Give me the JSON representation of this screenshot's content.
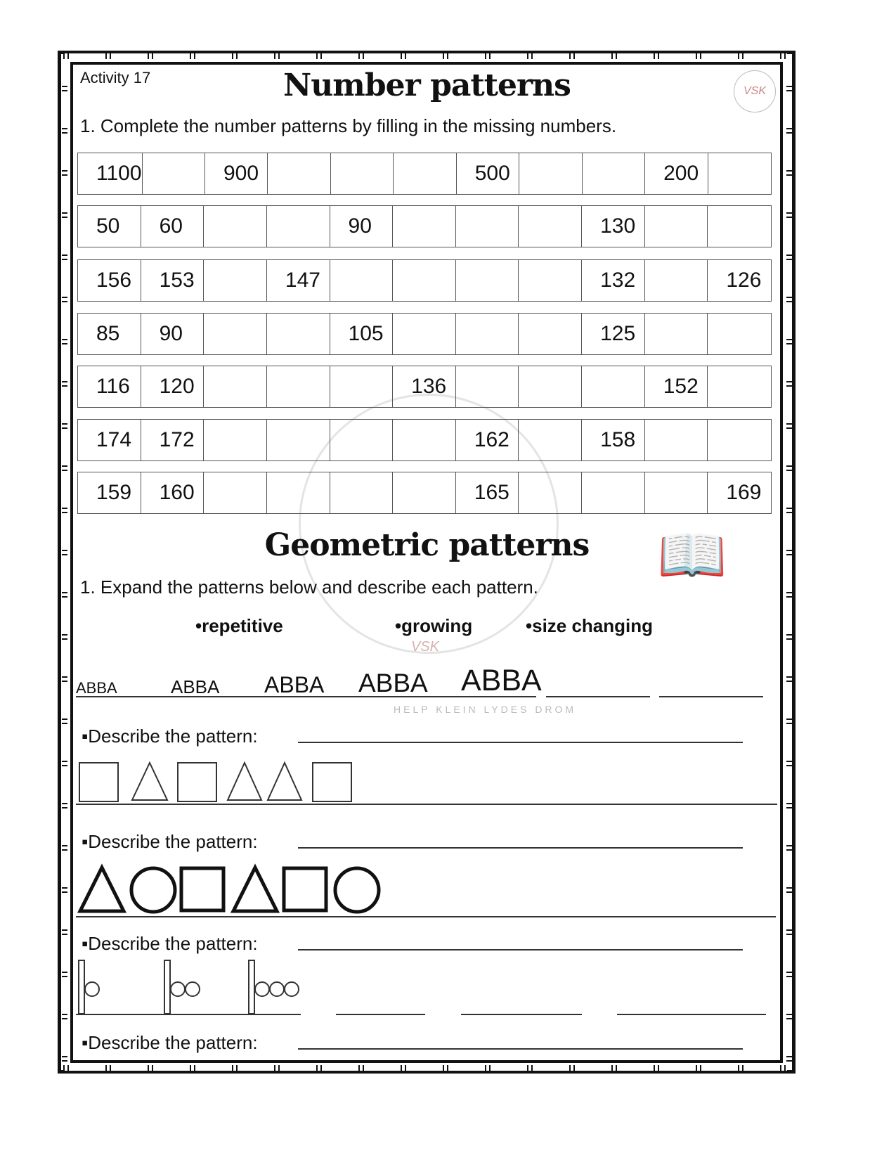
{
  "header": {
    "activity": "Activity 17",
    "title": "Number patterns",
    "logo_text": "VSK"
  },
  "number_section": {
    "instruction": "1. Complete the number patterns by filling in the missing numbers.",
    "rows": [
      [
        "1100",
        "",
        "900",
        "",
        "",
        "",
        "500",
        "",
        "",
        "200",
        ""
      ],
      [
        "50",
        "60",
        "",
        "",
        "90",
        "",
        "",
        "",
        "130",
        "",
        ""
      ],
      [
        "156",
        "153",
        "",
        "147",
        "",
        "",
        "",
        "",
        "132",
        "",
        "126"
      ],
      [
        "85",
        "90",
        "",
        "",
        "105",
        "",
        "",
        "",
        "125",
        "",
        ""
      ],
      [
        "116",
        "120",
        "",
        "",
        "",
        "136",
        "",
        "",
        "",
        "152",
        ""
      ],
      [
        "174",
        "172",
        "",
        "",
        "",
        "",
        "162",
        "",
        "158",
        "",
        ""
      ],
      [
        "159",
        "160",
        "",
        "",
        "",
        "",
        "165",
        "",
        "",
        "",
        "169"
      ]
    ]
  },
  "geometric_section": {
    "title": "Geometric patterns",
    "instruction": "1. Expand the patterns below and describe each pattern.",
    "options": [
      "•repetitive",
      "•growing",
      "•size changing"
    ],
    "abba": [
      "ABBA",
      "ABBA",
      "ABBA",
      "ABBA",
      "ABBA"
    ],
    "describe_label": "▪Describe the pattern:",
    "pattern2": [
      "square",
      "triangle",
      "square",
      "triangle",
      "triangle",
      "square"
    ],
    "pattern3": [
      "triangle",
      "circle",
      "square",
      "triangle",
      "square",
      "circle"
    ],
    "pattern4_circles": [
      1,
      2,
      3
    ]
  },
  "watermark_text": "HELP KLEIN LYDES DROM"
}
